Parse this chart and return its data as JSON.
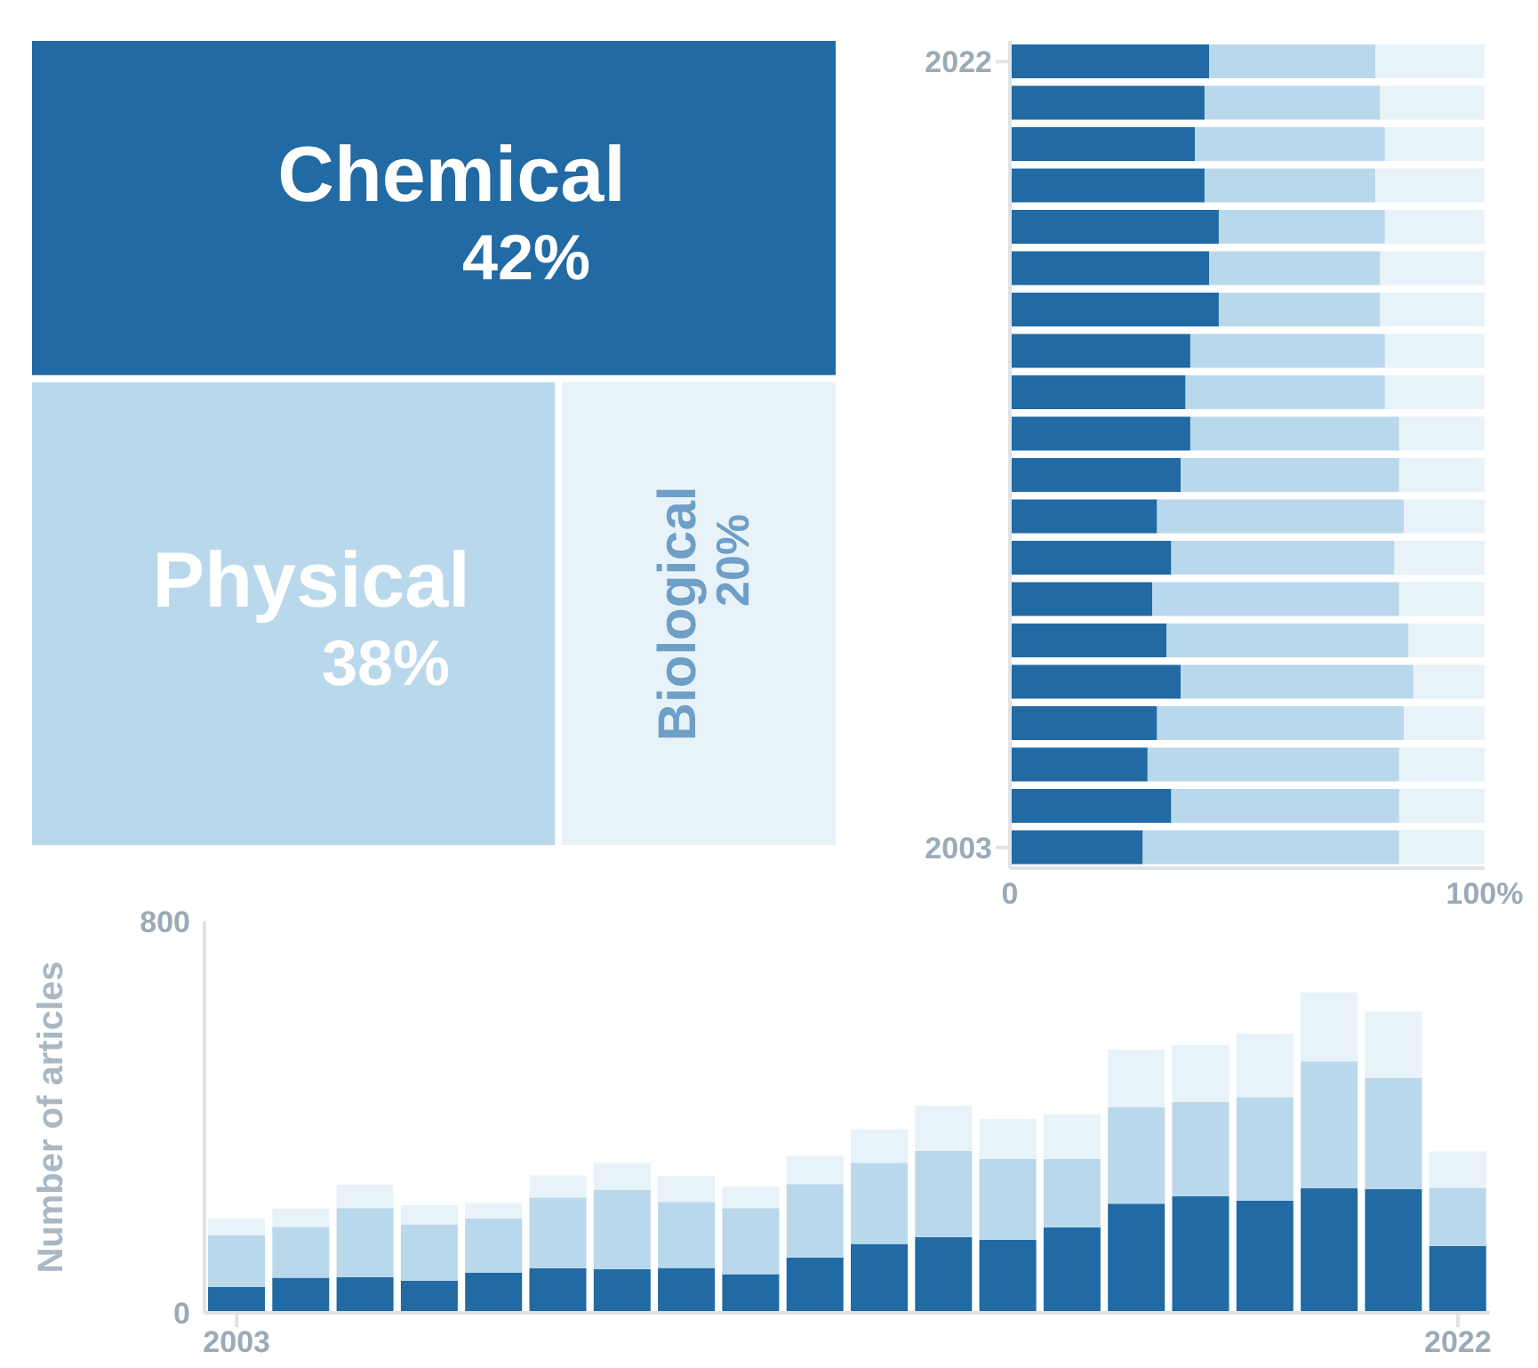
{
  "chart_data": [
    {
      "type": "other",
      "categories": [
        "Chemical",
        "Physical",
        "Biological"
      ],
      "values": [
        42,
        38,
        20
      ],
      "value_labels": [
        "42%",
        "38%",
        "20%"
      ],
      "colors": [
        "#216aa3",
        "#bad8ec",
        "#e8f2f9"
      ]
    },
    {
      "type": "bar",
      "orientation": "horizontal",
      "stacked": true,
      "categories": [
        "2022",
        null,
        null,
        null,
        null,
        null,
        null,
        null,
        null,
        null,
        null,
        null,
        null,
        null,
        null,
        null,
        null,
        null,
        null,
        "2003"
      ],
      "xlim": [
        0,
        100
      ],
      "xticks": [
        0,
        {
          "value": 100,
          "label": "100%"
        }
      ],
      "series": [
        {
          "color": "#216aa3",
          "values": [
            42,
            41,
            39,
            41,
            44,
            42,
            44,
            38,
            37,
            38,
            36,
            31,
            34,
            30,
            33,
            36,
            31,
            29,
            34,
            28
          ]
        },
        {
          "color": "#bad8ec",
          "values": [
            35,
            37,
            40,
            36,
            35,
            36,
            34,
            41,
            42,
            44,
            46,
            52,
            47,
            52,
            51,
            49,
            52,
            53,
            48,
            54
          ]
        },
        {
          "color": "#e8f2f9",
          "values": [
            23,
            22,
            21,
            23,
            21,
            22,
            22,
            21,
            21,
            18,
            18,
            17,
            19,
            18,
            16,
            15,
            17,
            18,
            18,
            18
          ]
        }
      ]
    },
    {
      "type": "bar",
      "stacked": true,
      "ylabel": "Number of articles",
      "categories": [
        "2003",
        null,
        null,
        null,
        null,
        null,
        null,
        null,
        null,
        null,
        null,
        null,
        null,
        null,
        null,
        null,
        null,
        null,
        null,
        "2022"
      ],
      "ylim": [
        0,
        800
      ],
      "yticks": [
        0,
        800
      ],
      "series": [
        {
          "color": "#216aa3",
          "values": [
            53,
            72,
            73,
            66,
            82,
            91,
            89,
            92,
            79,
            113,
            141,
            155,
            149,
            175,
            223,
            238,
            229,
            255,
            253,
            137
          ]
        },
        {
          "color": "#bad8ec",
          "values": [
            105,
            104,
            141,
            115,
            111,
            145,
            163,
            135,
            135,
            150,
            166,
            176,
            166,
            140,
            198,
            193,
            212,
            259,
            227,
            119
          ]
        },
        {
          "color": "#e8f2f9",
          "values": [
            35,
            37,
            48,
            39,
            32,
            45,
            55,
            53,
            44,
            58,
            68,
            92,
            82,
            91,
            117,
            116,
            130,
            141,
            136,
            74
          ]
        }
      ]
    }
  ]
}
